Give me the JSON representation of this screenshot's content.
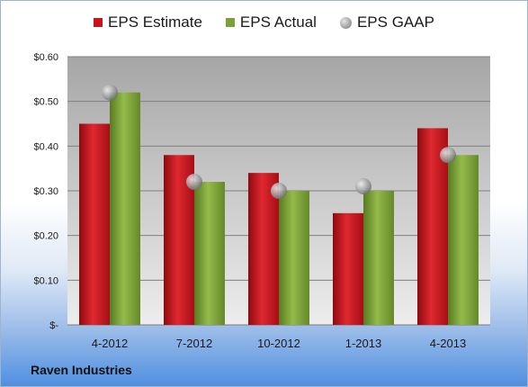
{
  "company": "Raven Industries",
  "legend": {
    "estimate": "EPS Estimate",
    "actual": "EPS Actual",
    "gaap": "EPS GAAP"
  },
  "colors": {
    "estimate": "#c8141b",
    "actual": "#7ba035",
    "gaap": "#a9a9a9"
  },
  "chart_data": {
    "type": "bar",
    "categories": [
      "4-2012",
      "7-2012",
      "10-2012",
      "1-2013",
      "4-2013"
    ],
    "series": [
      {
        "name": "EPS Estimate",
        "values": [
          0.45,
          0.38,
          0.34,
          0.25,
          0.44
        ]
      },
      {
        "name": "EPS Actual",
        "values": [
          0.52,
          0.32,
          0.3,
          0.3,
          0.38
        ]
      },
      {
        "name": "EPS GAAP",
        "values": [
          0.52,
          0.32,
          0.3,
          0.31,
          0.38
        ],
        "marker": "scatter"
      }
    ],
    "ylim": [
      0,
      0.6
    ],
    "yticks": [
      0,
      0.1,
      0.2,
      0.3,
      0.4,
      0.5,
      0.6
    ],
    "ytick_labels": [
      "$-",
      "$0.10",
      "$0.20",
      "$0.30",
      "$0.40",
      "$0.50",
      "$0.60"
    ],
    "grid": true,
    "legend_position": "top"
  }
}
